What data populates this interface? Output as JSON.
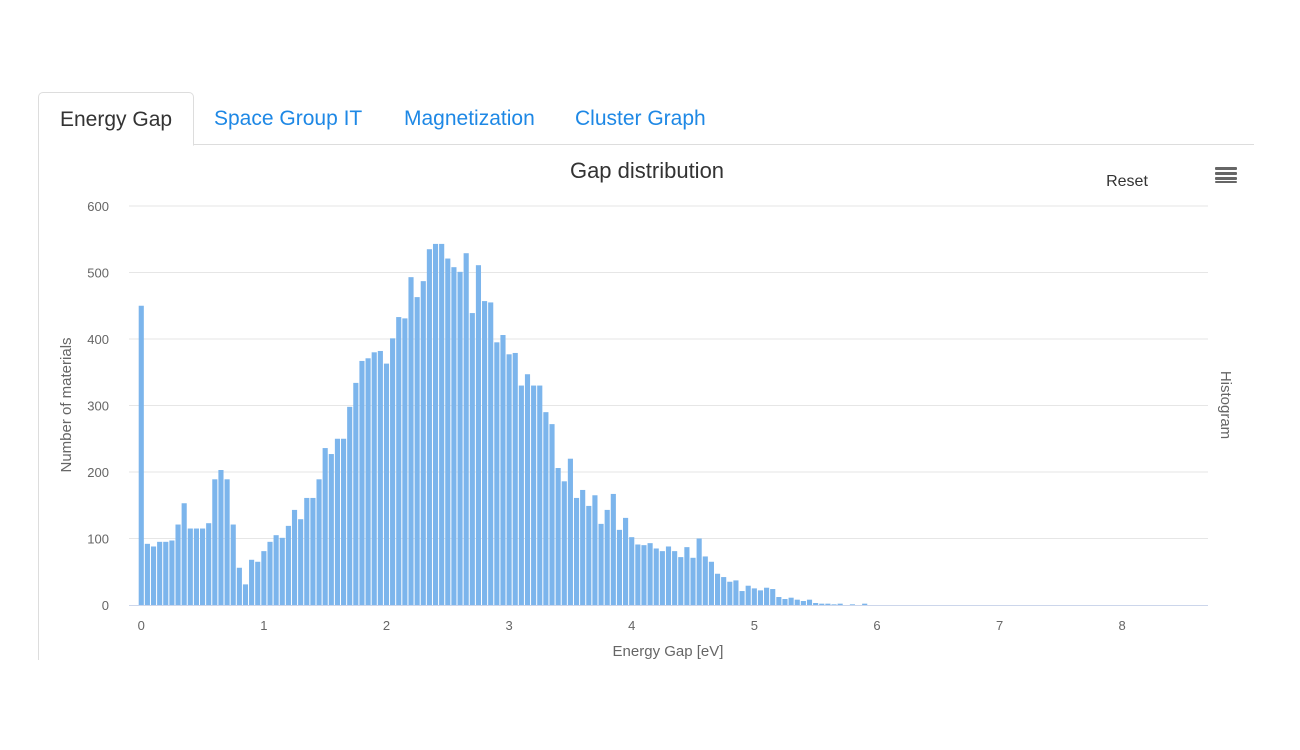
{
  "tabs": [
    {
      "label": "Energy Gap",
      "active": true
    },
    {
      "label": "Space Group IT",
      "active": false
    },
    {
      "label": "Magnetization",
      "active": false
    },
    {
      "label": "Cluster Graph",
      "active": false
    }
  ],
  "toolbar": {
    "reset_label": "Reset",
    "menu_icon": "hamburger-menu-icon"
  },
  "colors": {
    "bar": "#7cb5ec",
    "grid": "#e6e6e6",
    "axis_text": "#666666",
    "title": "#333333"
  },
  "chart_data": {
    "type": "bar",
    "title": "Gap distribution",
    "xlabel": "Energy Gap [eV]",
    "ylabel": "Number of materials",
    "series": [
      {
        "name": "Histogram"
      }
    ],
    "legend": "right-vertical",
    "xlim": [
      -0.1,
      8.7
    ],
    "ylim": [
      0,
      600
    ],
    "grid": true,
    "bin_width": 0.05,
    "xticks": [
      "0",
      "1",
      "2",
      "3",
      "4",
      "5",
      "6",
      "7",
      "8"
    ],
    "yticks": [
      "0",
      "100",
      "200",
      "300",
      "400",
      "500",
      "600"
    ],
    "values": [
      450,
      92,
      88,
      95,
      95,
      97,
      121,
      153,
      115,
      115,
      115,
      123,
      189,
      203,
      189,
      121,
      56,
      31,
      68,
      65,
      81,
      95,
      105,
      101,
      119,
      143,
      129,
      161,
      161,
      189,
      236,
      227,
      250,
      250,
      298,
      334,
      367,
      371,
      380,
      382,
      363,
      401,
      433,
      431,
      493,
      463,
      487,
      535,
      543,
      543,
      521,
      508,
      501,
      529,
      439,
      511,
      457,
      455,
      395,
      406,
      377,
      379,
      330,
      347,
      330,
      330,
      290,
      272,
      206,
      186,
      220,
      161,
      173,
      149,
      165,
      122,
      143,
      167,
      113,
      131,
      102,
      91,
      90,
      93,
      85,
      81,
      88,
      81,
      72,
      87,
      71,
      100,
      73,
      65,
      47,
      42,
      35,
      37,
      21,
      29,
      25,
      22,
      26,
      24,
      12,
      9,
      11,
      8,
      6,
      8,
      3,
      2,
      2,
      1,
      2,
      0,
      1,
      0,
      2,
      0,
      0,
      0,
      0,
      0,
      0,
      0,
      0,
      0,
      0,
      0,
      0,
      0,
      0,
      0,
      0,
      0,
      0,
      0,
      0,
      0,
      0,
      0,
      0,
      0,
      0,
      0,
      0,
      0,
      0,
      0,
      0,
      0,
      0,
      0,
      0,
      0,
      0,
      0,
      0,
      0,
      0,
      0,
      0,
      0,
      0,
      0,
      0,
      0,
      0,
      0,
      0,
      0
    ]
  }
}
